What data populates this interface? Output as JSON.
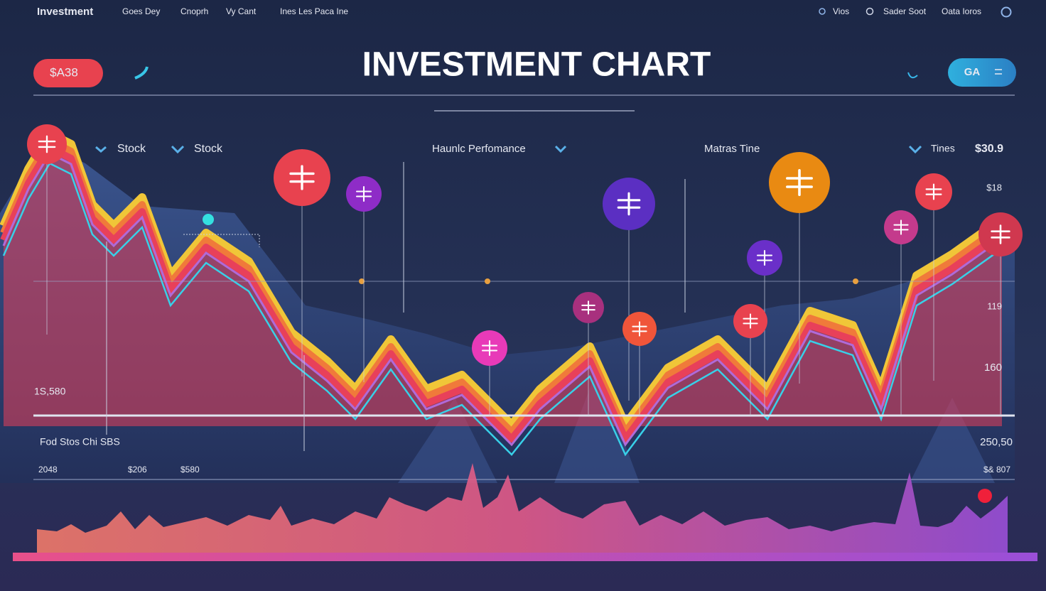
{
  "nav": {
    "brand": "Investment",
    "links": [
      "Goes Dey",
      "Cnoprh",
      "Vy Cant",
      "Ines Les Paca Ine"
    ],
    "actions": [
      "Vios",
      "Sader Soot",
      "Oata Ioros"
    ]
  },
  "header": {
    "badge": "$A38",
    "button": "GA",
    "title": "INVESTMENT CHART"
  },
  "legend": [
    "Stock",
    "Stock",
    "Haunlc Perfomance",
    "Matras Tine",
    "Tines",
    "$30.9"
  ],
  "right_labels": [
    "$18",
    "119",
    "160",
    "250,50",
    "$& 807"
  ],
  "left_labels": [
    "1S,580",
    "Fod Stos Chi SBS",
    "2048",
    "$206",
    "$580"
  ]
}
